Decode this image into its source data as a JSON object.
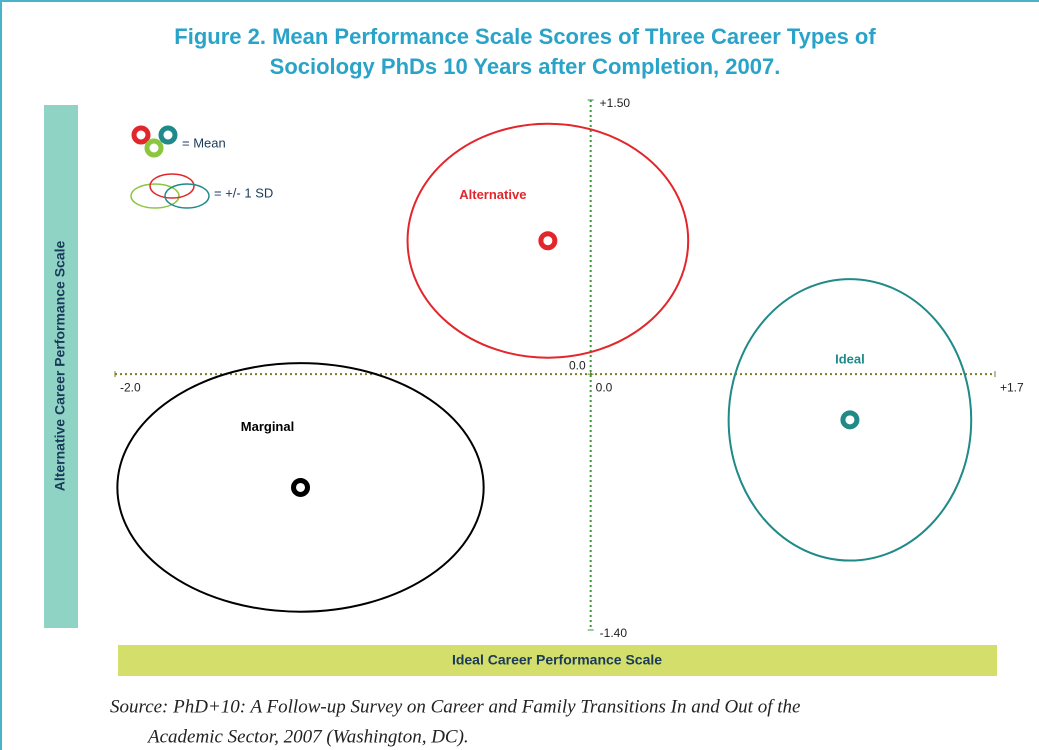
{
  "chart_data": {
    "type": "scatter",
    "title": [
      "Figure 2. Mean Performance Scale Scores of Three Career Types of",
      "Sociology PhDs 10 Years after Completion, 2007."
    ],
    "x_label": "Ideal Career Performance Scale",
    "y_label": "Alternative Career Performance Scale",
    "xlim": [
      -2.0,
      1.7
    ],
    "ylim": [
      -1.4,
      1.5
    ],
    "xticks": [
      {
        "value": -2.0,
        "label": "-2.0"
      },
      {
        "value": 0,
        "label": "0.0"
      },
      {
        "value": 1.7,
        "label": "+1.7"
      }
    ],
    "yticks": [
      {
        "value": 1.5,
        "label": "+1.50"
      },
      {
        "value": 0,
        "label": "0.0"
      },
      {
        "value": -1.4,
        "label": "-1.40"
      }
    ],
    "legend": {
      "mean": "= Mean",
      "sd": "= +/- 1 SD"
    },
    "series": [
      {
        "name": "Alternative",
        "color": "#e3262b",
        "x": -0.18,
        "y": 0.73,
        "sd_x": 0.59,
        "sd_y": 0.64
      },
      {
        "name": "Ideal",
        "color": "#1f8a88",
        "x": 1.09,
        "y": -0.25,
        "sd_x": 0.51,
        "sd_y": 0.77
      },
      {
        "name": "Marginal",
        "color": "#000000",
        "x": -1.22,
        "y": -0.62,
        "sd_x": 0.77,
        "sd_y": 0.68
      }
    ],
    "source": [
      "Source: PhD+10: A Follow-up Survey on Career and Family Transitions In and Out of the",
      "Academic Sector, 2007 (Washington, DC)."
    ]
  }
}
